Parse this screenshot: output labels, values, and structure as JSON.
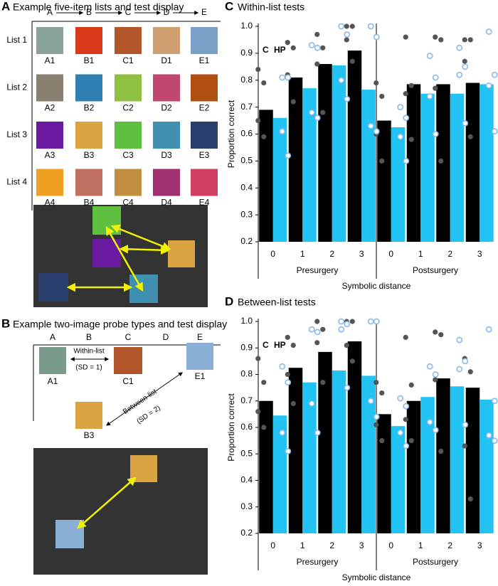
{
  "panel_a": {
    "letter": "A",
    "title": "Example five-item lists and test display",
    "columns": [
      "A",
      "B",
      "C",
      "D",
      "E"
    ],
    "rows": [
      {
        "label": "List 1",
        "items": [
          "A1",
          "B1",
          "C1",
          "D1",
          "E1"
        ]
      },
      {
        "label": "List 2",
        "items": [
          "A2",
          "B2",
          "C2",
          "D2",
          "E2"
        ]
      },
      {
        "label": "List 3",
        "items": [
          "A3",
          "B3",
          "C3",
          "D3",
          "E3"
        ]
      },
      {
        "label": "List 4",
        "items": [
          "A4",
          "B4",
          "C4",
          "D4",
          "E4"
        ]
      }
    ]
  },
  "panel_b": {
    "letter": "B",
    "title": "Example two-image probe types and test display",
    "columns": [
      "A",
      "B",
      "C",
      "D",
      "E"
    ],
    "items": [
      "A1",
      "C1",
      "E1",
      "B3"
    ],
    "within": {
      "label": "Within-list",
      "sd": "(SD = 1)"
    },
    "between": {
      "label": "Between-list",
      "sd": "(SD = 2)"
    }
  },
  "chart_data": [
    {
      "type": "bar",
      "letter": "C",
      "title": "Within-list tests",
      "ylabel": "Proportion correct",
      "xlabel": "Symbolic distance",
      "groups": [
        "Presurgery",
        "Postsurgery"
      ],
      "categories": [
        "0",
        "1",
        "2",
        "3",
        "0",
        "1",
        "2",
        "3"
      ],
      "ylim": [
        0.2,
        1.0
      ],
      "yticks": [
        0.2,
        0.3,
        0.4,
        0.5,
        0.6,
        0.7,
        0.8,
        0.9,
        {
          "value": 1.0,
          "label": "1.0"
        }
      ],
      "series": [
        {
          "name": "C",
          "color": "#000000",
          "point_color": "#555555",
          "values": [
            0.69,
            0.81,
            0.86,
            0.91,
            0.65,
            0.785,
            0.785,
            0.79
          ],
          "points": [
            [
              0.84,
              0.79,
              0.65,
              0.59
            ],
            [
              0.94,
              0.92,
              0.82,
              0.72
            ],
            [
              0.97,
              0.92,
              0.86,
              0.68
            ],
            [
              1.0,
              1.0,
              0.95,
              0.87
            ],
            [
              0.79,
              0.74,
              0.6,
              0.5
            ],
            [
              0.96,
              0.78,
              0.75,
              0.58
            ],
            [
              0.96,
              0.95,
              0.77,
              0.5
            ],
            [
              0.95,
              0.95,
              0.87,
              0.59
            ]
          ]
        },
        {
          "name": "HP",
          "color": "#22c3f3",
          "point_color": "#8bb8ea",
          "values": [
            0.66,
            0.77,
            0.855,
            0.765,
            0.625,
            0.75,
            0.75,
            0.785
          ],
          "points": [
            [
              0.81,
              0.81,
              0.61,
              0.52
            ],
            [
              0.93,
              0.92,
              0.68,
              0.66
            ],
            [
              1.0,
              0.97,
              0.8,
              0.73
            ],
            [
              1.0,
              0.96,
              0.63,
              0.61
            ],
            [
              0.7,
              0.66,
              0.59,
              0.5
            ],
            [
              0.89,
              0.81,
              0.74,
              0.6
            ],
            [
              0.92,
              0.85,
              0.82,
              0.64
            ],
            [
              0.98,
              0.82,
              0.78,
              0.61
            ]
          ]
        }
      ]
    },
    {
      "type": "bar",
      "letter": "D",
      "title": "Between-list tests",
      "ylabel": "Proportion correct",
      "xlabel": "Symbolic distance",
      "groups": [
        "Presurgery",
        "Postsurgery"
      ],
      "categories": [
        "0",
        "1",
        "2",
        "3",
        "0",
        "1",
        "2",
        "3"
      ],
      "ylim": [
        0.2,
        1.0
      ],
      "yticks": [
        0.2,
        0.3,
        0.4,
        0.5,
        0.6,
        0.7,
        0.8,
        0.9,
        {
          "value": 1.0,
          "label": "1.0"
        }
      ],
      "series": [
        {
          "name": "C",
          "color": "#000000",
          "point_color": "#555555",
          "values": [
            0.7,
            0.825,
            0.885,
            0.925,
            0.65,
            0.7,
            0.785,
            0.75
          ],
          "points": [
            [
              0.86,
              0.77,
              0.66,
              0.6
            ],
            [
              0.94,
              0.91,
              0.8,
              0.69
            ],
            [
              1.0,
              0.97,
              0.92,
              0.77
            ],
            [
              1.0,
              1.0,
              0.91,
              0.85
            ],
            [
              0.77,
              0.73,
              0.61,
              0.55
            ],
            [
              0.94,
              0.76,
              0.63,
              0.55
            ],
            [
              0.96,
              0.95,
              0.78,
              0.51
            ],
            [
              0.86,
              0.81,
              0.53,
              0.33
            ]
          ]
        },
        {
          "name": "HP",
          "color": "#22c3f3",
          "point_color": "#8bb8ea",
          "values": [
            0.645,
            0.77,
            0.815,
            0.795,
            0.605,
            0.715,
            0.755,
            0.705
          ],
          "points": [
            [
              0.83,
              0.77,
              0.58,
              0.51
            ],
            [
              0.97,
              0.96,
              0.69,
              0.58
            ],
            [
              1.0,
              0.99,
              0.97,
              0.75
            ],
            [
              1.0,
              1.0,
              0.7,
              0.64
            ],
            [
              0.71,
              0.68,
              0.58,
              0.53
            ],
            [
              0.83,
              0.8,
              0.62,
              0.59
            ],
            [
              0.93,
              0.85,
              0.82,
              0.61
            ],
            [
              0.97,
              0.7,
              0.57,
              0.55
            ]
          ]
        }
      ]
    }
  ]
}
